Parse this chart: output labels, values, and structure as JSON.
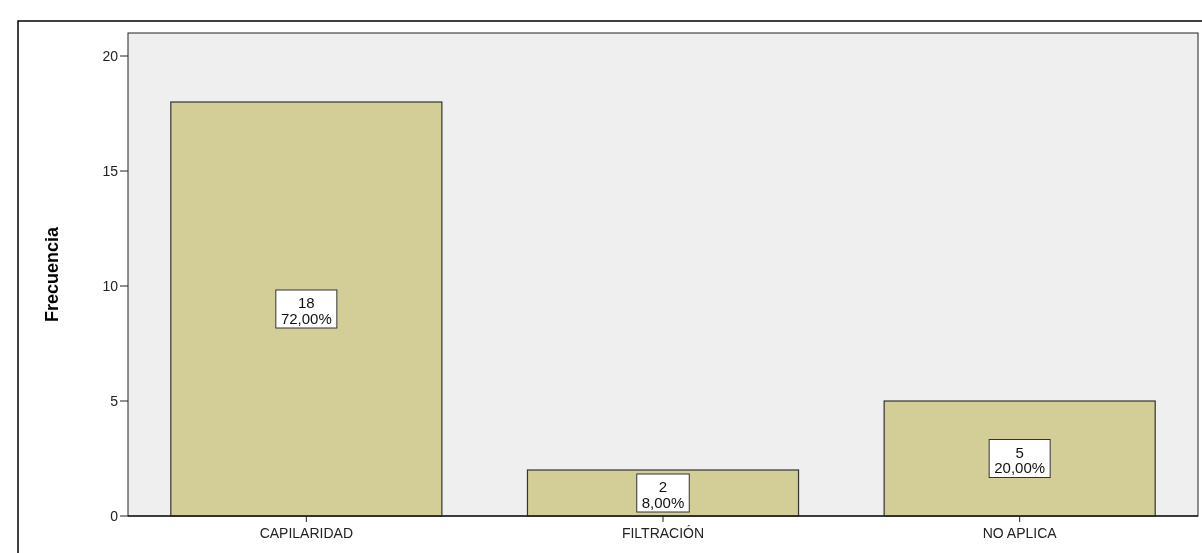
{
  "chart_data": {
    "type": "bar",
    "ylabel": "Frecuencia",
    "categories": [
      "CAPILARIDAD",
      "FILTRACIÓN",
      "NO APLICA"
    ],
    "values": [
      18,
      2,
      5
    ],
    "color": "#d3ce97",
    "value_labels": [
      "18\n72,00%",
      "2\n8,00%",
      "5\n20,00%"
    ],
    "ylim": [
      0,
      21
    ],
    "yticks": [
      0,
      5,
      10,
      15,
      20
    ],
    "grid": false
  }
}
